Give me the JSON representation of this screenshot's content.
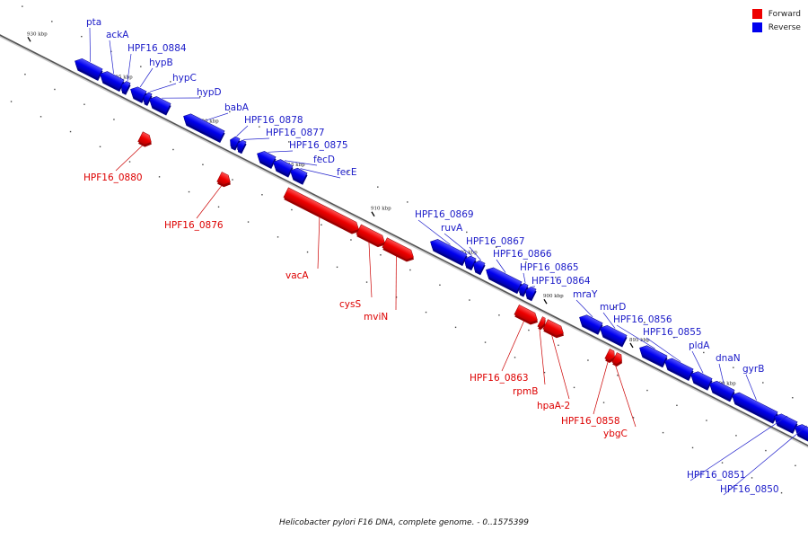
{
  "legend": {
    "forward": {
      "label": "Forward",
      "color": "#ee0000"
    },
    "reverse": {
      "label": "Reverse",
      "color": "#0000ee"
    }
  },
  "caption": "Helicobacter pylori F16 DNA, complete genome. - 0..1575399",
  "genes": [
    {
      "name": "pta",
      "strand": "reverse"
    },
    {
      "name": "ackA",
      "strand": "reverse"
    },
    {
      "name": "HPF16_0884",
      "strand": "reverse"
    },
    {
      "name": "hypB",
      "strand": "reverse"
    },
    {
      "name": "hypC",
      "strand": "reverse"
    },
    {
      "name": "hypD",
      "strand": "reverse"
    },
    {
      "name": "babA",
      "strand": "reverse"
    },
    {
      "name": "HPF16_0878",
      "strand": "reverse"
    },
    {
      "name": "HPF16_0877",
      "strand": "reverse"
    },
    {
      "name": "HPF16_0875",
      "strand": "reverse"
    },
    {
      "name": "fecD",
      "strand": "reverse"
    },
    {
      "name": "fecE",
      "strand": "reverse"
    },
    {
      "name": "HPF16_0880",
      "strand": "forward"
    },
    {
      "name": "HPF16_0876",
      "strand": "forward"
    },
    {
      "name": "HPF16_0869",
      "strand": "reverse"
    },
    {
      "name": "ruvA",
      "strand": "reverse"
    },
    {
      "name": "HPF16_0867",
      "strand": "reverse"
    },
    {
      "name": "HPF16_0866",
      "strand": "reverse"
    },
    {
      "name": "HPF16_0865",
      "strand": "reverse"
    },
    {
      "name": "HPF16_0864",
      "strand": "reverse"
    },
    {
      "name": "mraY",
      "strand": "reverse"
    },
    {
      "name": "murD",
      "strand": "reverse"
    },
    {
      "name": "HPF16_0856",
      "strand": "reverse"
    },
    {
      "name": "HPF16_0855",
      "strand": "reverse"
    },
    {
      "name": "pldA",
      "strand": "reverse"
    },
    {
      "name": "dnaN",
      "strand": "reverse"
    },
    {
      "name": "gyrB",
      "strand": "reverse"
    },
    {
      "name": "vacA",
      "strand": "forward"
    },
    {
      "name": "cysS",
      "strand": "forward"
    },
    {
      "name": "mviN",
      "strand": "forward"
    },
    {
      "name": "HPF16_0863",
      "strand": "forward"
    },
    {
      "name": "rpmB",
      "strand": "forward"
    },
    {
      "name": "hpaA-2",
      "strand": "forward"
    },
    {
      "name": "HPF16_0858",
      "strand": "forward"
    },
    {
      "name": "ybgC",
      "strand": "forward"
    },
    {
      "name": "HPF16_0851",
      "strand": "reverse"
    },
    {
      "name": "HPF16_0850",
      "strand": "reverse"
    }
  ],
  "ticks": [
    "930 kbp",
    "925 kbp",
    "920 kbp",
    "915 kbp",
    "910 kbp",
    "905 kbp",
    "900 kbp",
    "895 kbp",
    "890 kbp"
  ]
}
